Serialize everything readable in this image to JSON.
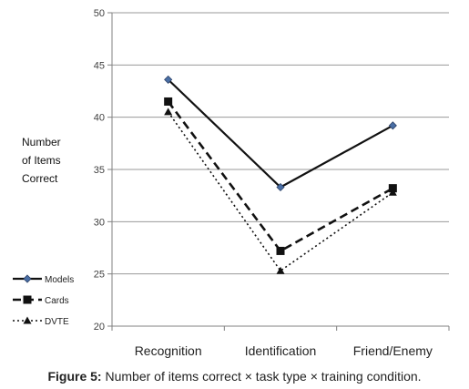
{
  "chart_data": {
    "type": "line",
    "categories": [
      "Recognition",
      "Identification",
      "Friend/Enemy"
    ],
    "series": [
      {
        "name": "Models",
        "values": [
          43.6,
          33.3,
          39.2
        ],
        "line": "solid",
        "marker": "diamond",
        "color": "#111111",
        "marker_color": "#4a6fa5"
      },
      {
        "name": "Cards",
        "values": [
          41.5,
          27.2,
          33.2
        ],
        "line": "dashed",
        "marker": "square",
        "color": "#111111",
        "marker_color": "#111111"
      },
      {
        "name": "DVTE",
        "values": [
          40.5,
          25.3,
          32.8
        ],
        "line": "dotted",
        "marker": "triangle",
        "color": "#111111",
        "marker_color": "#111111"
      }
    ],
    "ylabel": "Number\nof Items\nCorrect",
    "ylim": [
      20,
      50
    ],
    "yticks": [
      20,
      25,
      30,
      35,
      40,
      45,
      50
    ],
    "grid": true,
    "legend": "bottom-left"
  },
  "caption": {
    "bold": "Figure 5:",
    "text": " Number of items correct × task type × training condition."
  }
}
